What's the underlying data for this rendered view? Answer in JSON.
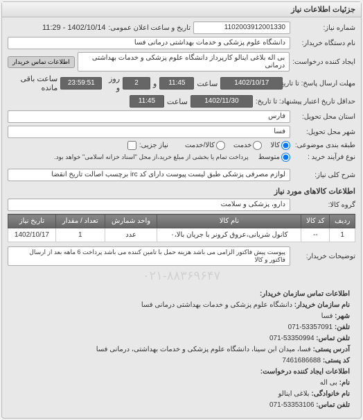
{
  "panel_title": "جزئیات اطلاعات نیاز",
  "fields": {
    "request_no_label": "شماره نیاز:",
    "request_no": "1102003912001330",
    "announce_label": "تاریخ و ساعت اعلان عمومی:",
    "announce_value": "1402/10/14 - 11:29",
    "org_label": "نام دستگاه خریدار:",
    "org_value": "دانشگاه علوم پزشکی و خدمات بهداشتی درمانی فسا",
    "creator_label": "ایجاد کننده درخواست:",
    "creator_value": "بی اله بلاغی اینالو کارپرداز دانشگاه علوم پزشکی و خدمات بهداشتی درمانی",
    "contact_btn": "اطلاعات تماس خریدار",
    "deadline_label": "مهلت ارسال پاسخ: تا تاریخ:",
    "deadline_date": "1402/10/17",
    "deadline_time_label": "ساعت",
    "deadline_time": "11:45",
    "remain_and": "و",
    "remain_days": "2",
    "remain_days_label": "روز و",
    "remain_time": "23:59:51",
    "remain_label": "ساعت باقی مانده",
    "validity_label": "حداقل تاریخ اعتبار پیشنهاد: تا تاریخ:",
    "validity_date": "1402/11/30",
    "validity_time": "11:45",
    "province_label": "استان محل تحویل:",
    "province_value": "فارس",
    "city_label": "شهر محل تحویل:",
    "city_value": "فسا",
    "category_label": "طبقه بندی موضوعی:",
    "cat_opt1": "کالا",
    "cat_opt2": "خدمت",
    "cat_opt3": "کالا/خدمت",
    "partial_label": "نیاز جزیی:",
    "process_label": "نوع فرآیند خرید :",
    "process_opt1": "متوسط",
    "process_note": "پرداخت تمام یا بخشی از مبلغ خرید،از محل \"اسناد خزانه اسلامی\" خواهد بود.",
    "desc_label": "شرح کلی نیاز:",
    "desc_value": "لوازم مصرفی پزشکی طبق لیست پیوست دارای کد irc برچسب اصالت تاریخ انقضا",
    "goods_title": "اطلاعات کالاهای مورد نیاز",
    "group_label": "گروه کالا:",
    "group_value": "دارو، پزشکی و سلامت",
    "buyer_notes_label": "توضیحات خریدار:",
    "buyer_notes": "پیوست پیش فاکتور الزامی می باشد هزینه حمل با تامین کننده می باشد پرداخت 6 ماهه بعد از ارسال فاکتور و کالا"
  },
  "table": {
    "headers": [
      "ردیف",
      "کد کالا",
      "نام کالا",
      "واحد شمارش",
      "تعداد / مقدار",
      "تاریخ نیاز"
    ],
    "rows": [
      [
        "1",
        "--",
        "کانول شریانی،عروق کرونر با جریان بالا،۰",
        "عدد",
        "1",
        "1402/10/17"
      ]
    ]
  },
  "watermark": "۰۲۱-۸۸۳۶۹۶۴۷",
  "contact": {
    "title": "اطلاعات تماس سازمان خریدار:",
    "org_name_label": "نام سازمان خریدار:",
    "org_name": "دانشگاه علوم پزشکی و خدمات بهداشتی درمانی فسا",
    "city_label": "شهر:",
    "city": "فسا",
    "phone_label": "تلفن:",
    "phone": "53357091-071",
    "fax_label": "تلفن تماس:",
    "fax": "53350994-071",
    "address_label": "آدرس پستی:",
    "address": "فسا، میدان ابن سینا، دانشگاه علوم پزشکی و خدمات بهداشتی، درمانی فسا",
    "postal_label": "کد پستی:",
    "postal": "7461686688",
    "creator_title": "اطلاعات ایجاد کننده درخواست:",
    "name_label": "نام:",
    "name": "بی اله",
    "family_label": "نام خانوادگی:",
    "family": "بلاغی اینالو",
    "creator_phone_label": "تلفن تماس:",
    "creator_phone": "53353106-071"
  },
  "colors": {
    "panel_bg": "#e8e8e8",
    "header_grad_top": "#f5f5f5",
    "header_grad_bot": "#e0e0e0",
    "border": "#bbbbbb",
    "input_bg": "#ffffff",
    "dark_box": "#666666",
    "th_bg_top": "#888888",
    "th_bg_bot": "#666666"
  }
}
